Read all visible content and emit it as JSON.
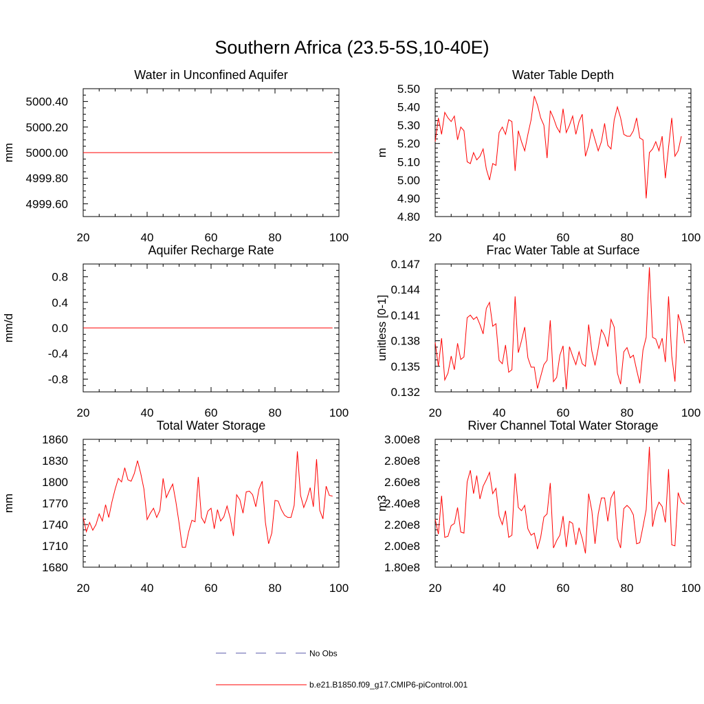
{
  "title": "Southern Africa (23.5-5S,10-40E)",
  "colors": {
    "model": "#ff0000",
    "obs": "#5a5aa8",
    "axis": "#000000"
  },
  "legend": {
    "obs_label": "No Obs",
    "model_label": "b.e21.B1850.f09_g17.CMIP6-piControl.001"
  },
  "chart_data": [
    {
      "type": "line",
      "title": "Water in Unconfined Aquifer",
      "ylabel": "mm",
      "xlabel": "",
      "xlim": [
        20,
        100
      ],
      "xticks": [
        20,
        40,
        60,
        80,
        100
      ],
      "ylim": [
        4999.5,
        5000.5
      ],
      "yticks": [
        4999.6,
        4999.8,
        5000.0,
        5000.2,
        5000.4
      ],
      "ytick_labels": [
        "4999.60",
        "4999.80",
        "5000.00",
        "5000.20",
        "5000.40"
      ],
      "x_start": 20,
      "x_end": 98,
      "constant": 5000.0
    },
    {
      "type": "line",
      "title": "Water Table Depth",
      "ylabel": "m",
      "xlabel": "",
      "xlim": [
        20,
        100
      ],
      "xticks": [
        20,
        40,
        60,
        80,
        100
      ],
      "ylim": [
        4.8,
        5.5
      ],
      "yticks": [
        4.8,
        4.9,
        5.0,
        5.1,
        5.2,
        5.3,
        5.4,
        5.5
      ],
      "ytick_labels": [
        "4.80",
        "4.90",
        "5.00",
        "5.10",
        "5.20",
        "5.30",
        "5.40",
        "5.50"
      ],
      "x_start": 20,
      "values": [
        5.21,
        5.34,
        5.25,
        5.37,
        5.34,
        5.32,
        5.35,
        5.22,
        5.29,
        5.27,
        5.1,
        5.09,
        5.15,
        5.11,
        5.13,
        5.17,
        5.06,
        5.0,
        5.09,
        5.08,
        5.26,
        5.29,
        5.25,
        5.33,
        5.32,
        5.05,
        5.27,
        5.21,
        5.16,
        5.25,
        5.33,
        5.46,
        5.41,
        5.34,
        5.3,
        5.12,
        5.38,
        5.34,
        5.29,
        5.26,
        5.39,
        5.26,
        5.3,
        5.35,
        5.25,
        5.32,
        5.36,
        5.13,
        5.19,
        5.28,
        5.22,
        5.16,
        5.21,
        5.31,
        5.19,
        5.17,
        5.33,
        5.4,
        5.34,
        5.25,
        5.24,
        5.24,
        5.27,
        5.34,
        5.23,
        5.22,
        4.9,
        5.15,
        5.17,
        5.21,
        5.16,
        5.24,
        5.01,
        5.18,
        5.34,
        5.13,
        5.16,
        5.24
      ]
    },
    {
      "type": "line",
      "title": "Aquifer Recharge Rate",
      "ylabel": "mm/d",
      "xlabel": "",
      "xlim": [
        20,
        100
      ],
      "xticks": [
        20,
        40,
        60,
        80,
        100
      ],
      "ylim": [
        -1.0,
        1.0
      ],
      "yticks": [
        -0.8,
        -0.4,
        0.0,
        0.4,
        0.8
      ],
      "ytick_labels": [
        "-0.8",
        "-0.4",
        "0.0",
        "0.4",
        "0.8"
      ],
      "x_start": 20,
      "x_end": 98,
      "constant": 0.0
    },
    {
      "type": "line",
      "title": "Frac Water Table at Surface",
      "ylabel": "unitless [0-1]",
      "xlabel": "",
      "xlim": [
        20,
        100
      ],
      "xticks": [
        20,
        40,
        60,
        80,
        100
      ],
      "ylim": [
        0.132,
        0.147
      ],
      "yticks": [
        0.132,
        0.135,
        0.138,
        0.141,
        0.144,
        0.147
      ],
      "ytick_labels": [
        "0.132",
        "0.135",
        "0.138",
        "0.141",
        "0.144",
        "0.147"
      ],
      "x_start": 20,
      "values": [
        0.1378,
        0.135,
        0.1383,
        0.1334,
        0.1342,
        0.1362,
        0.1346,
        0.1377,
        0.1358,
        0.1361,
        0.1407,
        0.141,
        0.1405,
        0.1408,
        0.1399,
        0.1388,
        0.1418,
        0.1425,
        0.1397,
        0.14,
        0.1357,
        0.1353,
        0.1375,
        0.1343,
        0.1346,
        0.1432,
        0.1366,
        0.138,
        0.1396,
        0.136,
        0.1349,
        0.1349,
        0.1324,
        0.1338,
        0.1352,
        0.1357,
        0.1404,
        0.1332,
        0.1337,
        0.1363,
        0.1374,
        0.1323,
        0.1373,
        0.1362,
        0.1352,
        0.1367,
        0.1353,
        0.135,
        0.1399,
        0.1368,
        0.1351,
        0.1371,
        0.1393,
        0.1386,
        0.1373,
        0.1405,
        0.1396,
        0.1342,
        0.1329,
        0.1367,
        0.1372,
        0.136,
        0.1363,
        0.1346,
        0.133,
        0.1369,
        0.1384,
        0.1466,
        0.1384,
        0.1382,
        0.1371,
        0.1383,
        0.1355,
        0.1432,
        0.1362,
        0.1332,
        0.1411,
        0.1398,
        0.1377
      ]
    },
    {
      "type": "line",
      "title": "Total Water Storage",
      "ylabel": "mm",
      "xlabel": "",
      "xlim": [
        20,
        100
      ],
      "xticks": [
        20,
        40,
        60,
        80,
        100
      ],
      "ylim": [
        1680,
        1860
      ],
      "yticks": [
        1680,
        1710,
        1740,
        1770,
        1800,
        1830,
        1860
      ],
      "ytick_labels": [
        "1680",
        "1710",
        "1740",
        "1770",
        "1800",
        "1830",
        "1860"
      ],
      "x_start": 20,
      "values": [
        1750,
        1730,
        1743,
        1732,
        1740,
        1755,
        1745,
        1768,
        1750,
        1772,
        1790,
        1805,
        1800,
        1820,
        1803,
        1801,
        1812,
        1830,
        1812,
        1790,
        1747,
        1756,
        1763,
        1750,
        1760,
        1805,
        1778,
        1788,
        1797,
        1772,
        1742,
        1708,
        1708,
        1730,
        1746,
        1744,
        1807,
        1750,
        1742,
        1759,
        1763,
        1734,
        1761,
        1745,
        1751,
        1766,
        1749,
        1724,
        1782,
        1775,
        1756,
        1786,
        1787,
        1782,
        1765,
        1790,
        1801,
        1743,
        1713,
        1728,
        1774,
        1773,
        1761,
        1753,
        1750,
        1750,
        1767,
        1843,
        1781,
        1764,
        1776,
        1792,
        1765,
        1832,
        1760,
        1748,
        1794,
        1781,
        1780
      ]
    },
    {
      "type": "line",
      "title": "River Channel Total Water Storage",
      "ylabel": "m3",
      "xlabel": "",
      "xlim": [
        20,
        100
      ],
      "xticks": [
        20,
        40,
        60,
        80,
        100
      ],
      "ylim": [
        180000000.0,
        300000000.0
      ],
      "yticks": [
        180000000.0,
        200000000.0,
        220000000.0,
        240000000.0,
        260000000.0,
        280000000.0,
        300000000.0
      ],
      "ytick_labels": [
        "1.80e8",
        "2.00e8",
        "2.20e8",
        "2.40e8",
        "2.60e8",
        "2.80e8",
        "3.00e8"
      ],
      "x_start": 20,
      "values": [
        225000000.0,
        211000000.0,
        247000000.0,
        208000000.0,
        209000000.0,
        219000000.0,
        221000000.0,
        236000000.0,
        213000000.0,
        212000000.0,
        260000000.0,
        271000000.0,
        249000000.0,
        266000000.0,
        244000000.0,
        256000000.0,
        262000000.0,
        269000000.0,
        249000000.0,
        254000000.0,
        228000000.0,
        220000000.0,
        233000000.0,
        208000000.0,
        210000000.0,
        268000000.0,
        236000000.0,
        233000000.0,
        238000000.0,
        216000000.0,
        210000000.0,
        212000000.0,
        197000000.0,
        208000000.0,
        227000000.0,
        230000000.0,
        259000000.0,
        198000000.0,
        205000000.0,
        210000000.0,
        228000000.0,
        199000000.0,
        223000000.0,
        221000000.0,
        201000000.0,
        217000000.0,
        207000000.0,
        193000000.0,
        249000000.0,
        233000000.0,
        202000000.0,
        230000000.0,
        245000000.0,
        245000000.0,
        223000000.0,
        245000000.0,
        251000000.0,
        207000000.0,
        198000000.0,
        235000000.0,
        238000000.0,
        235000000.0,
        229000000.0,
        202000000.0,
        203000000.0,
        218000000.0,
        234000000.0,
        293000000.0,
        218000000.0,
        233000000.0,
        241000000.0,
        237000000.0,
        222000000.0,
        272000000.0,
        201000000.0,
        200000000.0,
        250000000.0,
        241000000.0,
        239000000.0
      ]
    }
  ]
}
